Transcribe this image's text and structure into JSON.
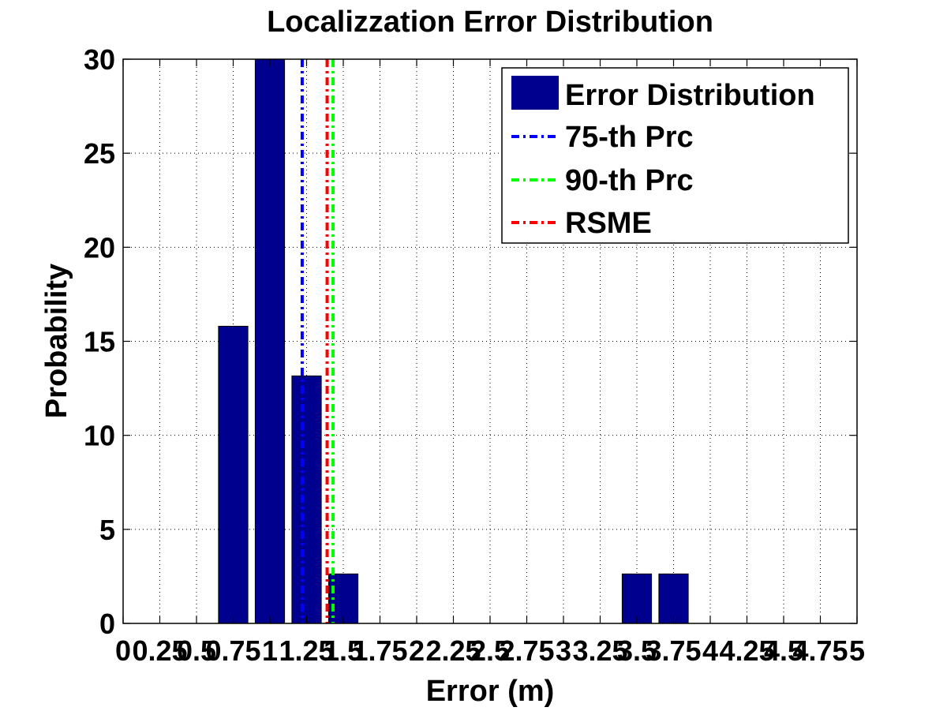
{
  "chart_data": {
    "type": "bar",
    "title": "Localizzation Error Distribution",
    "xlabel": "Error (m)",
    "ylabel": "Probability",
    "xlim": [
      0,
      5
    ],
    "ylim": [
      0,
      30
    ],
    "x_ticks": [
      0,
      0.25,
      0.5,
      0.75,
      1,
      1.25,
      1.5,
      1.75,
      2,
      2.25,
      2.5,
      2.75,
      3,
      3.25,
      3.5,
      3.75,
      4,
      4.25,
      4.5,
      4.75,
      5
    ],
    "x_tick_labels": [
      "0",
      "0.25",
      "0.5",
      "0.75",
      "1",
      "1.25",
      "1.5",
      "1.75",
      "2",
      "2.25",
      "2.5",
      "2.75",
      "3",
      "3.25",
      "3.5",
      "3.75",
      "4",
      "4.25",
      "4.5",
      "4.75",
      "5"
    ],
    "y_ticks": [
      0,
      5,
      10,
      15,
      20,
      25,
      30
    ],
    "y_tick_labels": [
      "0",
      "5",
      "10",
      "15",
      "20",
      "25",
      "30"
    ],
    "grid": true,
    "legend_position": "top-right",
    "bar_width": 0.2,
    "series": [
      {
        "name": "Error Distribution",
        "color": "#00008f",
        "x": [
          0.75,
          1.0,
          1.25,
          1.5,
          3.5,
          3.75
        ],
        "values": [
          15.8,
          30.0,
          13.16,
          2.63,
          2.63,
          2.63
        ]
      }
    ],
    "reference_lines": [
      {
        "name": "75-th Prc",
        "x": 1.22,
        "color": "#0000ff",
        "style": "dash-dot"
      },
      {
        "name": "90-th Prc",
        "x": 1.43,
        "color": "#00ff00",
        "style": "dash-dot"
      },
      {
        "name": "RSME",
        "x": 1.39,
        "color": "#ff0000",
        "style": "dash-dot"
      }
    ]
  }
}
